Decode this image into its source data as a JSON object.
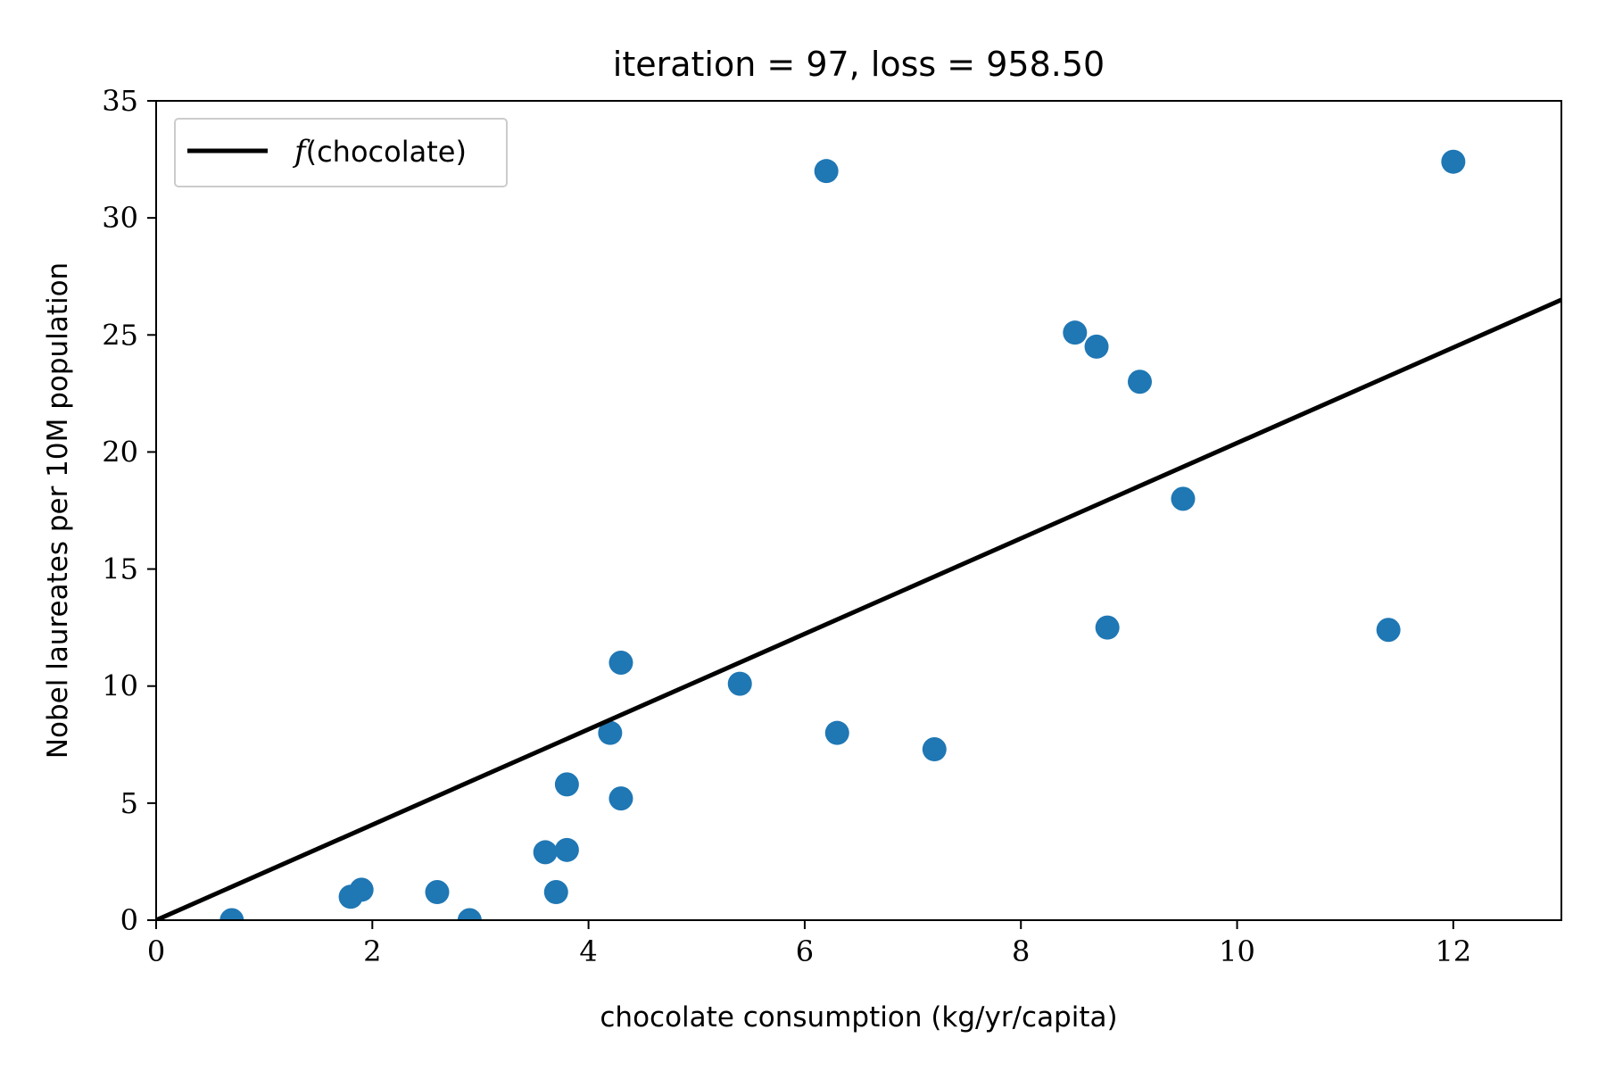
{
  "chart_data": {
    "type": "scatter",
    "title": "iteration = 97, loss = 958.50",
    "xlabel": "chocolate consumption (kg/yr/capita)",
    "ylabel": "Nobel laureates per 10M population",
    "xlim": [
      0,
      13
    ],
    "ylim": [
      0,
      35
    ],
    "xticks": [
      0,
      2,
      4,
      6,
      8,
      10,
      12
    ],
    "yticks": [
      0,
      5,
      10,
      15,
      20,
      25,
      30,
      35
    ],
    "grid": false,
    "legend_position": "top-left",
    "points": [
      {
        "x": 0.7,
        "y": 0.0
      },
      {
        "x": 1.8,
        "y": 1.0
      },
      {
        "x": 1.9,
        "y": 1.3
      },
      {
        "x": 2.6,
        "y": 1.2
      },
      {
        "x": 2.9,
        "y": 0.0
      },
      {
        "x": 3.6,
        "y": 2.9
      },
      {
        "x": 3.7,
        "y": 1.2
      },
      {
        "x": 3.8,
        "y": 3.0
      },
      {
        "x": 3.8,
        "y": 5.8
      },
      {
        "x": 4.2,
        "y": 8.0
      },
      {
        "x": 4.3,
        "y": 11.0
      },
      {
        "x": 4.3,
        "y": 5.2
      },
      {
        "x": 5.4,
        "y": 10.1
      },
      {
        "x": 6.2,
        "y": 32.0
      },
      {
        "x": 6.3,
        "y": 8.0
      },
      {
        "x": 7.2,
        "y": 7.3
      },
      {
        "x": 8.5,
        "y": 25.1
      },
      {
        "x": 8.7,
        "y": 24.5
      },
      {
        "x": 8.8,
        "y": 12.5
      },
      {
        "x": 9.1,
        "y": 23.0
      },
      {
        "x": 9.5,
        "y": 18.0
      },
      {
        "x": 11.4,
        "y": 12.4
      },
      {
        "x": 12.0,
        "y": 32.4
      }
    ],
    "fit_line": {
      "name_prefix": "f",
      "name_arg": "(chocolate)",
      "x": [
        0,
        13
      ],
      "y": [
        0,
        26.5
      ]
    },
    "colors": {
      "points": "#1f77b4",
      "line": "#000000"
    }
  }
}
